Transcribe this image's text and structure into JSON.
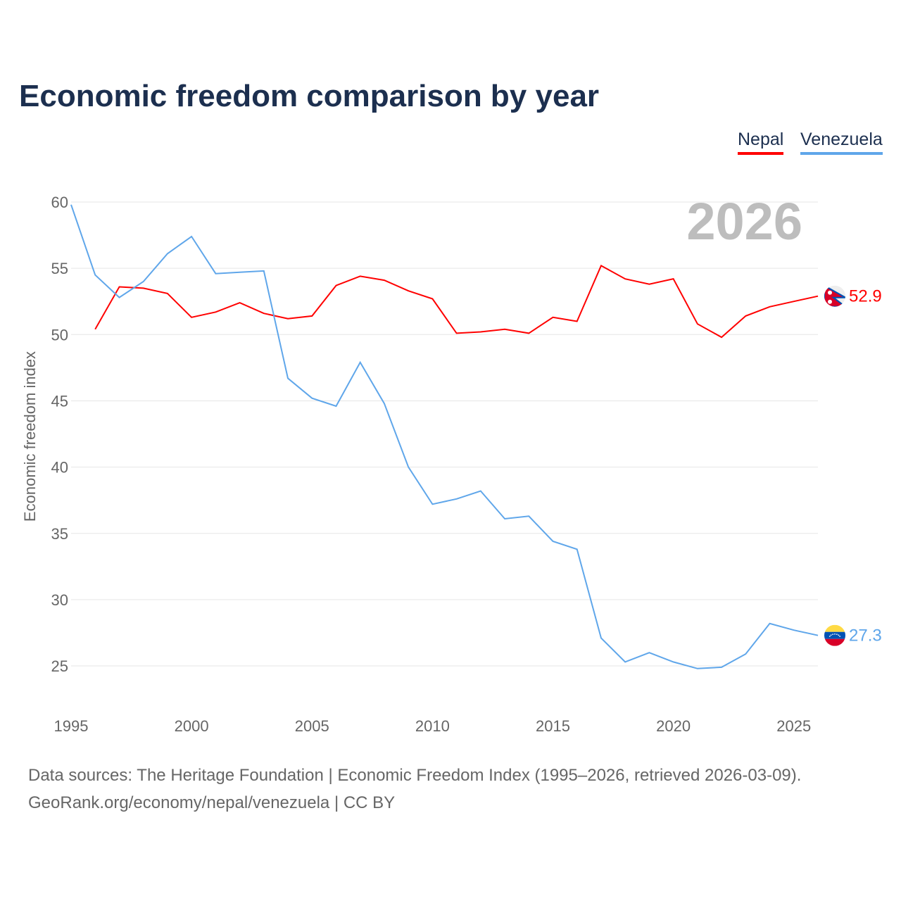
{
  "title": "Economic freedom comparison by year",
  "footer": {
    "line1": "Data sources: The Heritage Foundation | Economic Freedom Index (1995–2026, retrieved 2026-03-09).",
    "line2": "GeoRank.org/economy/nepal/venezuela | CC BY"
  },
  "chart_data": {
    "type": "line",
    "title": "Economic freedom comparison by year",
    "xlabel": "",
    "ylabel": "Economic freedom index",
    "watermark_year": "2026",
    "xlim": [
      1995,
      2026
    ],
    "ylim": [
      22,
      60
    ],
    "xticks": [
      "1995",
      "2000",
      "2005",
      "2010",
      "2015",
      "2020",
      "2025"
    ],
    "yticks": [
      "25",
      "30",
      "35",
      "40",
      "45",
      "50",
      "55",
      "60"
    ],
    "grid": true,
    "legend": "top-right",
    "series": [
      {
        "name": "Nepal",
        "color": "#ff0000",
        "end_label": "52.9",
        "flag": "nepal-flag",
        "x": [
          1996,
          1997,
          1998,
          1999,
          2000,
          2001,
          2002,
          2003,
          2004,
          2005,
          2006,
          2007,
          2008,
          2009,
          2010,
          2011,
          2012,
          2013,
          2014,
          2015,
          2016,
          2017,
          2018,
          2019,
          2020,
          2021,
          2022,
          2023,
          2024,
          2025,
          2026
        ],
        "values": [
          50.4,
          53.6,
          53.5,
          53.1,
          51.3,
          51.7,
          52.4,
          51.6,
          51.2,
          51.4,
          53.7,
          54.4,
          54.1,
          53.3,
          52.7,
          50.1,
          50.2,
          50.4,
          50.1,
          51.3,
          51.0,
          55.2,
          54.2,
          53.8,
          54.2,
          50.8,
          49.8,
          51.4,
          52.1,
          52.5,
          52.9
        ]
      },
      {
        "name": "Venezuela",
        "color": "#5fa6ea",
        "end_label": "27.3",
        "flag": "venezuela-flag",
        "x": [
          1995,
          1996,
          1997,
          1998,
          1999,
          2000,
          2001,
          2002,
          2003,
          2004,
          2005,
          2006,
          2007,
          2008,
          2009,
          2010,
          2011,
          2012,
          2013,
          2014,
          2015,
          2016,
          2017,
          2018,
          2019,
          2020,
          2021,
          2022,
          2023,
          2024,
          2025,
          2026
        ],
        "values": [
          59.8,
          54.5,
          52.8,
          54.0,
          56.1,
          57.4,
          54.6,
          54.7,
          54.8,
          46.7,
          45.2,
          44.6,
          47.9,
          44.8,
          40.0,
          37.2,
          37.6,
          38.2,
          36.1,
          36.3,
          34.4,
          33.8,
          27.1,
          25.3,
          26.0,
          25.3,
          24.8,
          24.9,
          25.9,
          28.2,
          27.7,
          27.3
        ]
      }
    ]
  }
}
